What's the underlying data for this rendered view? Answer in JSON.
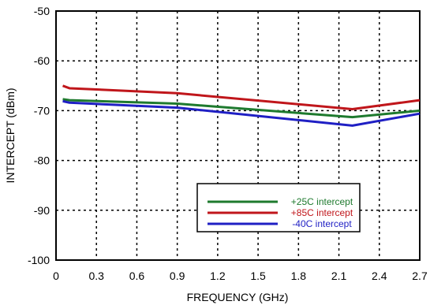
{
  "chart_data": {
    "type": "line",
    "xlabel": "FREQUENCY (GHz)",
    "ylabel": "INTERCEPT (dBm)",
    "xlim": [
      0,
      2.7
    ],
    "ylim": [
      -100,
      -50
    ],
    "xticks": [
      "0",
      "0.3",
      "0.6",
      "0.9",
      "1.2",
      "1.5",
      "1.8",
      "2.1",
      "2.4",
      "2.7"
    ],
    "yticks": [
      "-50",
      "-60",
      "-70",
      "-80",
      "-90",
      "-100"
    ],
    "grid": true,
    "legend_position": "bottom-right",
    "series": [
      {
        "name": "+25C intercept",
        "color": "#1e7a2e",
        "x": [
          0.05,
          0.1,
          0.9,
          2.2,
          2.7
        ],
        "y": [
          -67.7,
          -67.9,
          -68.6,
          -71.3,
          -70.0
        ]
      },
      {
        "name": "+85C intercept",
        "color": "#c0161b",
        "x": [
          0.05,
          0.1,
          0.9,
          2.2,
          2.7
        ],
        "y": [
          -65.0,
          -65.5,
          -66.5,
          -69.7,
          -67.9
        ]
      },
      {
        "name": "-40C intercept",
        "color": "#1f1fc4",
        "x": [
          0.05,
          0.1,
          0.9,
          2.2,
          2.7
        ],
        "y": [
          -68.1,
          -68.4,
          -69.4,
          -73.0,
          -70.6
        ]
      }
    ]
  }
}
